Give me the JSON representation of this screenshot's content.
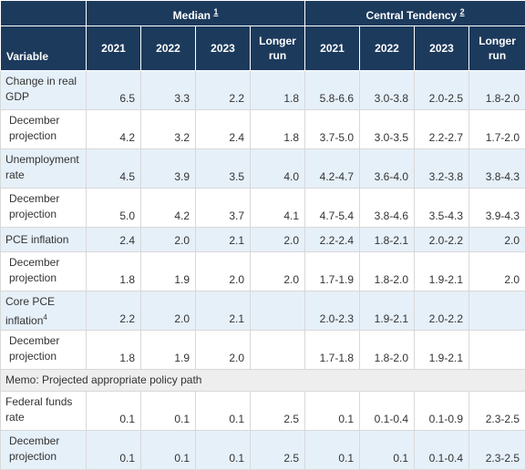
{
  "header": {
    "median_label": "Median",
    "median_note": "1",
    "ct_label": "Central Tendency",
    "ct_note": "2",
    "variable_label": "Variable",
    "years": [
      "2021",
      "2022",
      "2023"
    ],
    "longer_1": "Longer",
    "longer_2": "run"
  },
  "rows": [
    {
      "l1": "Change in real",
      "l2": "GDP",
      "m": [
        "6.5",
        "3.3",
        "2.2",
        "1.8"
      ],
      "c": [
        "5.8-6.6",
        "3.0-3.8",
        "2.0-2.5",
        "1.8-2.0"
      ]
    },
    {
      "l1": "December",
      "l2": "projection",
      "m": [
        "4.2",
        "3.2",
        "2.4",
        "1.8"
      ],
      "c": [
        "3.7-5.0",
        "3.0-3.5",
        "2.2-2.7",
        "1.7-2.0"
      ]
    },
    {
      "l1": "Unemployment",
      "l2": "rate",
      "m": [
        "4.5",
        "3.9",
        "3.5",
        "4.0"
      ],
      "c": [
        "4.2-4.7",
        "3.6-4.0",
        "3.2-3.8",
        "3.8-4.3"
      ]
    },
    {
      "l1": "December",
      "l2": "projection",
      "m": [
        "5.0",
        "4.2",
        "3.7",
        "4.1"
      ],
      "c": [
        "4.7-5.4",
        "3.8-4.6",
        "3.5-4.3",
        "3.9-4.3"
      ]
    },
    {
      "l1": "PCE inflation",
      "l2": "",
      "m": [
        "2.4",
        "2.0",
        "2.1",
        "2.0"
      ],
      "c": [
        "2.2-2.4",
        "1.8-2.1",
        "2.0-2.2",
        "2.0"
      ]
    },
    {
      "l1": "December",
      "l2": "projection",
      "m": [
        "1.8",
        "1.9",
        "2.0",
        "2.0"
      ],
      "c": [
        "1.7-1.9",
        "1.8-2.0",
        "1.9-2.1",
        "2.0"
      ]
    },
    {
      "l1": "Core PCE",
      "l2": "inflation",
      "note": "4",
      "m": [
        "2.2",
        "2.0",
        "2.1",
        ""
      ],
      "c": [
        "2.0-2.3",
        "1.9-2.1",
        "2.0-2.2",
        ""
      ]
    },
    {
      "l1": "December",
      "l2": "projection",
      "m": [
        "1.8",
        "1.9",
        "2.0",
        ""
      ],
      "c": [
        "1.7-1.8",
        "1.8-2.0",
        "1.9-2.1",
        ""
      ]
    },
    {
      "l1": "Federal funds",
      "l2": "rate",
      "m": [
        "0.1",
        "0.1",
        "0.1",
        "2.5"
      ],
      "c": [
        "0.1",
        "0.1-0.4",
        "0.1-0.9",
        "2.3-2.5"
      ]
    },
    {
      "l1": "December",
      "l2": "projection",
      "m": [
        "0.1",
        "0.1",
        "0.1",
        "2.5"
      ],
      "c": [
        "0.1",
        "0.1",
        "0.1-0.4",
        "2.3-2.5"
      ]
    }
  ],
  "memo": "Memo: Projected appropriate policy path",
  "colors": {
    "header_bg": "#1c3a5c",
    "row_blue": "#e6f0f9",
    "memo_bg": "#eeeeee"
  }
}
